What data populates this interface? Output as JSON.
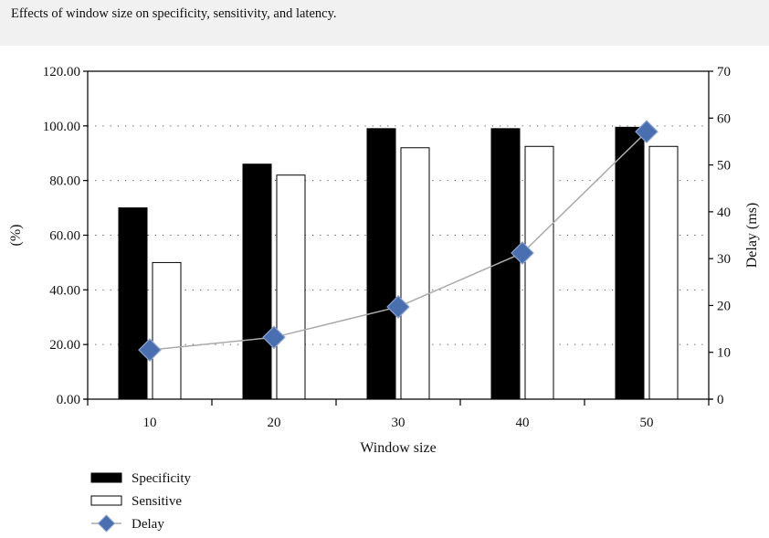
{
  "caption": "Effects of window size on specificity, sensitivity, and latency.",
  "chart_data": {
    "type": "bar",
    "categories": [
      "10",
      "20",
      "30",
      "40",
      "50"
    ],
    "series": [
      {
        "name": "Specificity",
        "type": "bar",
        "axis": "left",
        "color": "#000000",
        "values": [
          70,
          86,
          99,
          99,
          99.5
        ]
      },
      {
        "name": "Sensitive",
        "type": "bar",
        "axis": "left",
        "color": "#ffffff",
        "values": [
          50,
          82,
          92,
          92.5,
          92.5
        ]
      },
      {
        "name": "Delay",
        "type": "line",
        "axis": "right",
        "color": "#4a6fb0",
        "marker": "diamond",
        "values": [
          10.5,
          13.2,
          19.7,
          31.2,
          57.1
        ]
      }
    ],
    "xlabel": "Window size",
    "ylabel": "(%)",
    "y2label": "Delay (ms)",
    "ylim": [
      0,
      120
    ],
    "y2lim": [
      0,
      70
    ],
    "yticks": [
      "0.00",
      "20.00",
      "40.00",
      "60.00",
      "80.00",
      "100.00",
      "120.00"
    ],
    "y2ticks": [
      "0",
      "10",
      "20",
      "30",
      "40",
      "50",
      "60",
      "70"
    ],
    "grid": "dotted horizontal",
    "legend": "bottom-left"
  }
}
